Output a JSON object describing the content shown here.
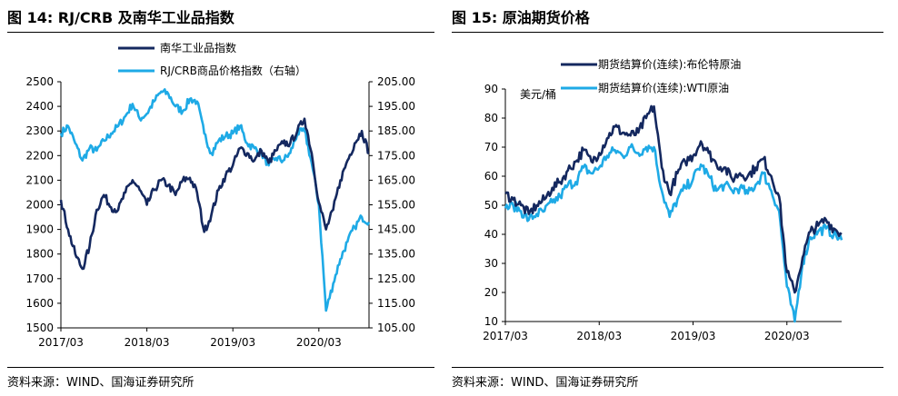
{
  "left": {
    "title": "图 14: RJ/CRB 及南华工业品指数",
    "source": "资料来源：WIND、国海证券研究所"
  },
  "right": {
    "title": "图 15: 原油期货价格",
    "source": "资料来源：WIND、国海证券研究所"
  },
  "colors": {
    "dark_series": "#14285f",
    "light_series": "#1eaae6",
    "rule": "#000000"
  },
  "chart_data": [
    {
      "type": "line",
      "x_tick_labels": [
        "2017/03",
        "2018/03",
        "2019/03",
        "2020/03"
      ],
      "xlim": [
        "2017-03",
        "2020-10"
      ],
      "ylim_left": [
        1500,
        2500
      ],
      "yticks_left": [
        "2500",
        "2400",
        "2300",
        "2200",
        "2100",
        "2000",
        "1900",
        "1800",
        "1700",
        "1600",
        "1500"
      ],
      "ylim_right": [
        105,
        205
      ],
      "yticks_right": [
        "205.00",
        "195.00",
        "185.00",
        "175.00",
        "165.00",
        "155.00",
        "145.00",
        "135.00",
        "125.00",
        "115.00",
        "105.00"
      ],
      "legend_position": "top",
      "series": [
        {
          "name": "南华工业品指数",
          "axis": "left",
          "color": "#14285f",
          "points": [
            [
              "2017-03",
              2020
            ],
            [
              "2017-04",
              1900
            ],
            [
              "2017-05",
              1800
            ],
            [
              "2017-06",
              1740
            ],
            [
              "2017-07",
              1830
            ],
            [
              "2017-08",
              1980
            ],
            [
              "2017-09",
              2040
            ],
            [
              "2017-10",
              1990
            ],
            [
              "2017-11",
              1980
            ],
            [
              "2017-12",
              2050
            ],
            [
              "2018-01",
              2100
            ],
            [
              "2018-02",
              2060
            ],
            [
              "2018-03",
              2000
            ],
            [
              "2018-04",
              2060
            ],
            [
              "2018-05",
              2100
            ],
            [
              "2018-06",
              2080
            ],
            [
              "2018-07",
              2040
            ],
            [
              "2018-08",
              2100
            ],
            [
              "2018-09",
              2110
            ],
            [
              "2018-10",
              2050
            ],
            [
              "2018-11",
              1890
            ],
            [
              "2018-12",
              1960
            ],
            [
              "2019-01",
              2060
            ],
            [
              "2019-02",
              2120
            ],
            [
              "2019-03",
              2160
            ],
            [
              "2019-04",
              2230
            ],
            [
              "2019-05",
              2210
            ],
            [
              "2019-06",
              2180
            ],
            [
              "2019-07",
              2220
            ],
            [
              "2019-08",
              2170
            ],
            [
              "2019-09",
              2220
            ],
            [
              "2019-10",
              2250
            ],
            [
              "2019-11",
              2250
            ],
            [
              "2019-12",
              2300
            ],
            [
              "2020-01",
              2350
            ],
            [
              "2020-02",
              2210
            ],
            [
              "2020-03",
              2010
            ],
            [
              "2020-04",
              1900
            ],
            [
              "2020-05",
              1980
            ],
            [
              "2020-06",
              2100
            ],
            [
              "2020-07",
              2180
            ],
            [
              "2020-08",
              2250
            ],
            [
              "2020-09",
              2300
            ],
            [
              "2020-10",
              2210
            ]
          ]
        },
        {
          "name": "RJ/CRB商品价格指数（右轴）",
          "axis": "right",
          "color": "#1eaae6",
          "points": [
            [
              "2017-03",
              184
            ],
            [
              "2017-04",
              187
            ],
            [
              "2017-05",
              180
            ],
            [
              "2017-06",
              173
            ],
            [
              "2017-07",
              178
            ],
            [
              "2017-08",
              177
            ],
            [
              "2017-09",
              181
            ],
            [
              "2017-10",
              184
            ],
            [
              "2017-11",
              187
            ],
            [
              "2017-12",
              191
            ],
            [
              "2018-01",
              196
            ],
            [
              "2018-02",
              190
            ],
            [
              "2018-03",
              192
            ],
            [
              "2018-04",
              197
            ],
            [
              "2018-05",
              201
            ],
            [
              "2018-06",
              200
            ],
            [
              "2018-07",
              195
            ],
            [
              "2018-08",
              193
            ],
            [
              "2018-09",
              198
            ],
            [
              "2018-10",
              197
            ],
            [
              "2018-11",
              184
            ],
            [
              "2018-12",
              176
            ],
            [
              "2019-01",
              181
            ],
            [
              "2019-02",
              183
            ],
            [
              "2019-03",
              184
            ],
            [
              "2019-04",
              187
            ],
            [
              "2019-05",
              180
            ],
            [
              "2019-06",
              178
            ],
            [
              "2019-07",
              176
            ],
            [
              "2019-08",
              171
            ],
            [
              "2019-09",
              174
            ],
            [
              "2019-10",
              173
            ],
            [
              "2019-11",
              176
            ],
            [
              "2019-12",
              184
            ],
            [
              "2020-01",
              185
            ],
            [
              "2020-02",
              172
            ],
            [
              "2020-03",
              155
            ],
            [
              "2020-04",
              112
            ],
            [
              "2020-05",
              123
            ],
            [
              "2020-06",
              133
            ],
            [
              "2020-07",
              140
            ],
            [
              "2020-08",
              146
            ],
            [
              "2020-09",
              150
            ],
            [
              "2020-10",
              148
            ]
          ]
        }
      ]
    },
    {
      "type": "line",
      "x_tick_labels": [
        "2017/03",
        "2018/03",
        "2019/03",
        "2020/03"
      ],
      "xlim": [
        "2017-03",
        "2020-10"
      ],
      "ylim": [
        10,
        90
      ],
      "yticks": [
        "90",
        "80",
        "70",
        "60",
        "50",
        "40",
        "30",
        "20",
        "10"
      ],
      "y_unit": "美元/桶",
      "legend_position": "top",
      "series": [
        {
          "name": "期货结算价(连续):布伦特原油",
          "color": "#14285f",
          "points": [
            [
              "2017-03",
              54
            ],
            [
              "2017-04",
              52
            ],
            [
              "2017-05",
              50
            ],
            [
              "2017-06",
              47
            ],
            [
              "2017-07",
              50
            ],
            [
              "2017-08",
              52
            ],
            [
              "2017-09",
              56
            ],
            [
              "2017-10",
              58
            ],
            [
              "2017-11",
              62
            ],
            [
              "2017-12",
              65
            ],
            [
              "2018-01",
              69
            ],
            [
              "2018-02",
              65
            ],
            [
              "2018-03",
              68
            ],
            [
              "2018-04",
              73
            ],
            [
              "2018-05",
              77
            ],
            [
              "2018-06",
              75
            ],
            [
              "2018-07",
              74
            ],
            [
              "2018-08",
              75
            ],
            [
              "2018-09",
              80
            ],
            [
              "2018-10",
              84
            ],
            [
              "2018-11",
              63
            ],
            [
              "2018-12",
              54
            ],
            [
              "2019-01",
              61
            ],
            [
              "2019-02",
              65
            ],
            [
              "2019-03",
              67
            ],
            [
              "2019-04",
              72
            ],
            [
              "2019-05",
              68
            ],
            [
              "2019-06",
              64
            ],
            [
              "2019-07",
              63
            ],
            [
              "2019-08",
              59
            ],
            [
              "2019-09",
              61
            ],
            [
              "2019-10",
              60
            ],
            [
              "2019-11",
              63
            ],
            [
              "2019-12",
              66
            ],
            [
              "2020-01",
              60
            ],
            [
              "2020-02",
              53
            ],
            [
              "2020-03",
              27
            ],
            [
              "2020-04",
              20
            ],
            [
              "2020-05",
              32
            ],
            [
              "2020-06",
              41
            ],
            [
              "2020-07",
              43
            ],
            [
              "2020-08",
              45
            ],
            [
              "2020-09",
              42
            ],
            [
              "2020-10",
              40
            ]
          ]
        },
        {
          "name": "期货结算价(连续):WTI原油",
          "color": "#1eaae6",
          "points": [
            [
              "2017-03",
              49
            ],
            [
              "2017-04",
              50
            ],
            [
              "2017-05",
              48
            ],
            [
              "2017-06",
              45
            ],
            [
              "2017-07",
              47
            ],
            [
              "2017-08",
              48
            ],
            [
              "2017-09",
              51
            ],
            [
              "2017-10",
              53
            ],
            [
              "2017-11",
              57
            ],
            [
              "2017-12",
              58
            ],
            [
              "2018-01",
              63
            ],
            [
              "2018-02",
              61
            ],
            [
              "2018-03",
              63
            ],
            [
              "2018-04",
              67
            ],
            [
              "2018-05",
              69
            ],
            [
              "2018-06",
              67
            ],
            [
              "2018-07",
              70
            ],
            [
              "2018-08",
              68
            ],
            [
              "2018-09",
              70
            ],
            [
              "2018-10",
              70
            ],
            [
              "2018-11",
              55
            ],
            [
              "2018-12",
              46
            ],
            [
              "2019-01",
              52
            ],
            [
              "2019-02",
              56
            ],
            [
              "2019-03",
              59
            ],
            [
              "2019-04",
              64
            ],
            [
              "2019-05",
              60
            ],
            [
              "2019-06",
              55
            ],
            [
              "2019-07",
              57
            ],
            [
              "2019-08",
              55
            ],
            [
              "2019-09",
              56
            ],
            [
              "2019-10",
              54
            ],
            [
              "2019-11",
              57
            ],
            [
              "2019-12",
              61
            ],
            [
              "2020-01",
              55
            ],
            [
              "2020-02",
              48
            ],
            [
              "2020-03",
              22
            ],
            [
              "2020-04",
              10
            ],
            [
              "2020-05",
              30
            ],
            [
              "2020-06",
              39
            ],
            [
              "2020-07",
              41
            ],
            [
              "2020-08",
              42
            ],
            [
              "2020-09",
              40
            ],
            [
              "2020-10",
              38
            ]
          ]
        }
      ]
    }
  ]
}
